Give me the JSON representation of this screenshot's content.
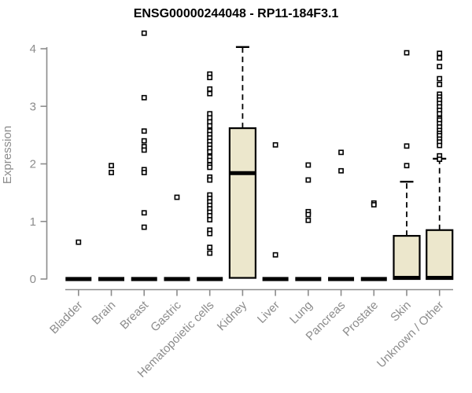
{
  "chart_data": {
    "type": "boxplot",
    "title": "ENSG00000244048 - RP11-184F3.1",
    "ylabel": "Expression",
    "xlabel": "",
    "ylim": [
      0,
      4.3
    ],
    "yticks": [
      0,
      1,
      2,
      3,
      4
    ],
    "grid": "off",
    "legend": "none",
    "categories": [
      "Bladder",
      "Brain",
      "Breast",
      "Gastric",
      "Hematopoietic cells",
      "Kidney",
      "Liver",
      "Lung",
      "Pancreas",
      "Prostate",
      "Skin",
      "Unknown / Other"
    ],
    "series": [
      {
        "name": "Bladder",
        "flat": true,
        "q1": 0,
        "median": 0,
        "q3": 0,
        "whisker_low": 0,
        "whisker_high": 0,
        "outliers": [
          0.64
        ]
      },
      {
        "name": "Brain",
        "flat": true,
        "q1": 0,
        "median": 0,
        "q3": 0,
        "whisker_low": 0,
        "whisker_high": 0,
        "outliers": [
          1.97,
          1.85
        ]
      },
      {
        "name": "Breast",
        "flat": true,
        "q1": 0,
        "median": 0,
        "q3": 0,
        "whisker_low": 0,
        "whisker_high": 0,
        "outliers": [
          4.27,
          3.15,
          2.57,
          2.4,
          2.3,
          2.24,
          1.9,
          1.85,
          1.15,
          0.9
        ]
      },
      {
        "name": "Gastric",
        "flat": true,
        "q1": 0,
        "median": 0,
        "q3": 0,
        "whisker_low": 0,
        "whisker_high": 0,
        "outliers": [
          1.42
        ]
      },
      {
        "name": "Hematopoietic cells",
        "flat": true,
        "q1": 0,
        "median": 0,
        "q3": 0,
        "whisker_low": 0,
        "whisker_high": 0,
        "outliers": [
          3.56,
          3.5,
          3.3,
          3.22,
          2.87,
          2.8,
          2.73,
          2.66,
          2.57,
          2.51,
          2.45,
          2.39,
          2.33,
          2.27,
          2.21,
          2.12,
          2.06,
          1.98,
          1.94,
          1.77,
          1.72,
          1.46,
          1.4,
          1.34,
          1.28,
          1.22,
          1.16,
          1.1,
          1.03,
          0.85,
          0.79,
          0.55,
          0.45
        ]
      },
      {
        "name": "Kidney",
        "flat": false,
        "q1": 0.02,
        "median": 1.84,
        "q3": 2.62,
        "whisker_low": 0.02,
        "whisker_high": 4.03,
        "outliers": []
      },
      {
        "name": "Liver",
        "flat": true,
        "q1": 0,
        "median": 0,
        "q3": 0,
        "whisker_low": 0,
        "whisker_high": 0,
        "outliers": [
          2.33,
          0.42
        ]
      },
      {
        "name": "Lung",
        "flat": true,
        "q1": 0,
        "median": 0,
        "q3": 0,
        "whisker_low": 0,
        "whisker_high": 0,
        "outliers": [
          1.98,
          1.72,
          1.17,
          1.12,
          1.02
        ]
      },
      {
        "name": "Pancreas",
        "flat": true,
        "q1": 0,
        "median": 0,
        "q3": 0,
        "whisker_low": 0,
        "whisker_high": 0,
        "outliers": [
          2.2,
          1.88
        ]
      },
      {
        "name": "Prostate",
        "flat": true,
        "q1": 0,
        "median": 0,
        "q3": 0,
        "whisker_low": 0,
        "whisker_high": 0,
        "outliers": [
          1.32,
          1.29
        ]
      },
      {
        "name": "Skin",
        "flat": false,
        "q1": 0,
        "median": 0.02,
        "q3": 0.75,
        "whisker_low": 0,
        "whisker_high": 1.69,
        "outliers": [
          3.93,
          2.31,
          1.97
        ]
      },
      {
        "name": "Unknown / Other",
        "flat": false,
        "q1": 0,
        "median": 0.02,
        "q3": 0.85,
        "whisker_low": 0,
        "whisker_high": 2.09,
        "outliers": [
          3.92,
          3.84,
          3.69,
          3.48,
          3.38,
          3.21,
          3.16,
          3.11,
          3.05,
          2.99,
          2.93,
          2.87,
          2.79,
          2.76,
          2.7,
          2.64,
          2.58,
          2.53,
          2.49,
          2.43,
          2.38,
          2.32,
          2.14,
          2.08
        ]
      }
    ],
    "colors": {
      "box_fill": "#ece7cc",
      "box_stroke": "#000000",
      "median": "#000000",
      "outlier_fill": "#ffffff",
      "axis": "#8c8c8c",
      "title": "#000000",
      "background": "#ffffff"
    }
  }
}
